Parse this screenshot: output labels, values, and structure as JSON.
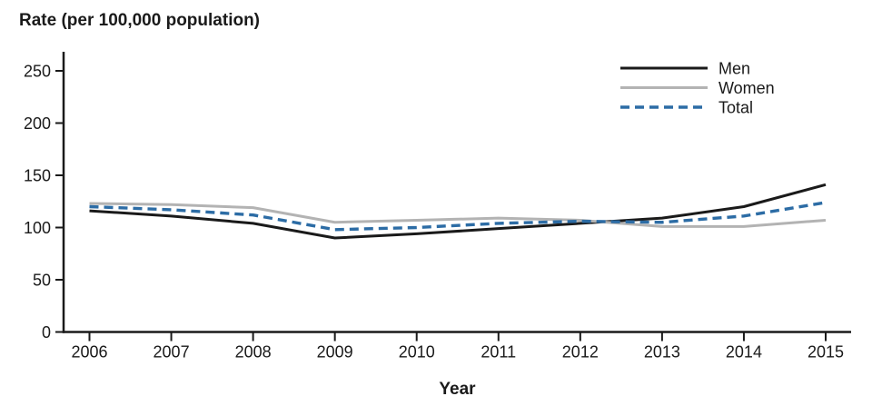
{
  "chart_data": {
    "type": "line",
    "title": "Rate (per 100,000 population)",
    "xlabel": "Year",
    "x": [
      2006,
      2007,
      2008,
      2009,
      2010,
      2011,
      2012,
      2013,
      2014,
      2015
    ],
    "yticks": [
      0,
      50,
      100,
      150,
      200,
      250
    ],
    "ylim": [
      0,
      265
    ],
    "grid": false,
    "legend_position": "top-right",
    "axis_color": "#1a1a1a",
    "background_color": "#ffffff",
    "series": [
      {
        "name": "Men",
        "color": "#1a1a1a",
        "style": "solid",
        "values": [
          116,
          111,
          104,
          90,
          94,
          99,
          104,
          109,
          120,
          141
        ]
      },
      {
        "name": "Women",
        "color": "#b3b3b3",
        "style": "solid",
        "values": [
          123,
          122,
          119,
          105,
          107,
          109,
          107,
          101,
          101,
          107
        ]
      },
      {
        "name": "Total",
        "color": "#2c6ca5",
        "style": "dashed",
        "values": [
          120,
          117,
          112,
          98,
          100,
          104,
          106,
          105,
          111,
          124
        ]
      }
    ]
  }
}
